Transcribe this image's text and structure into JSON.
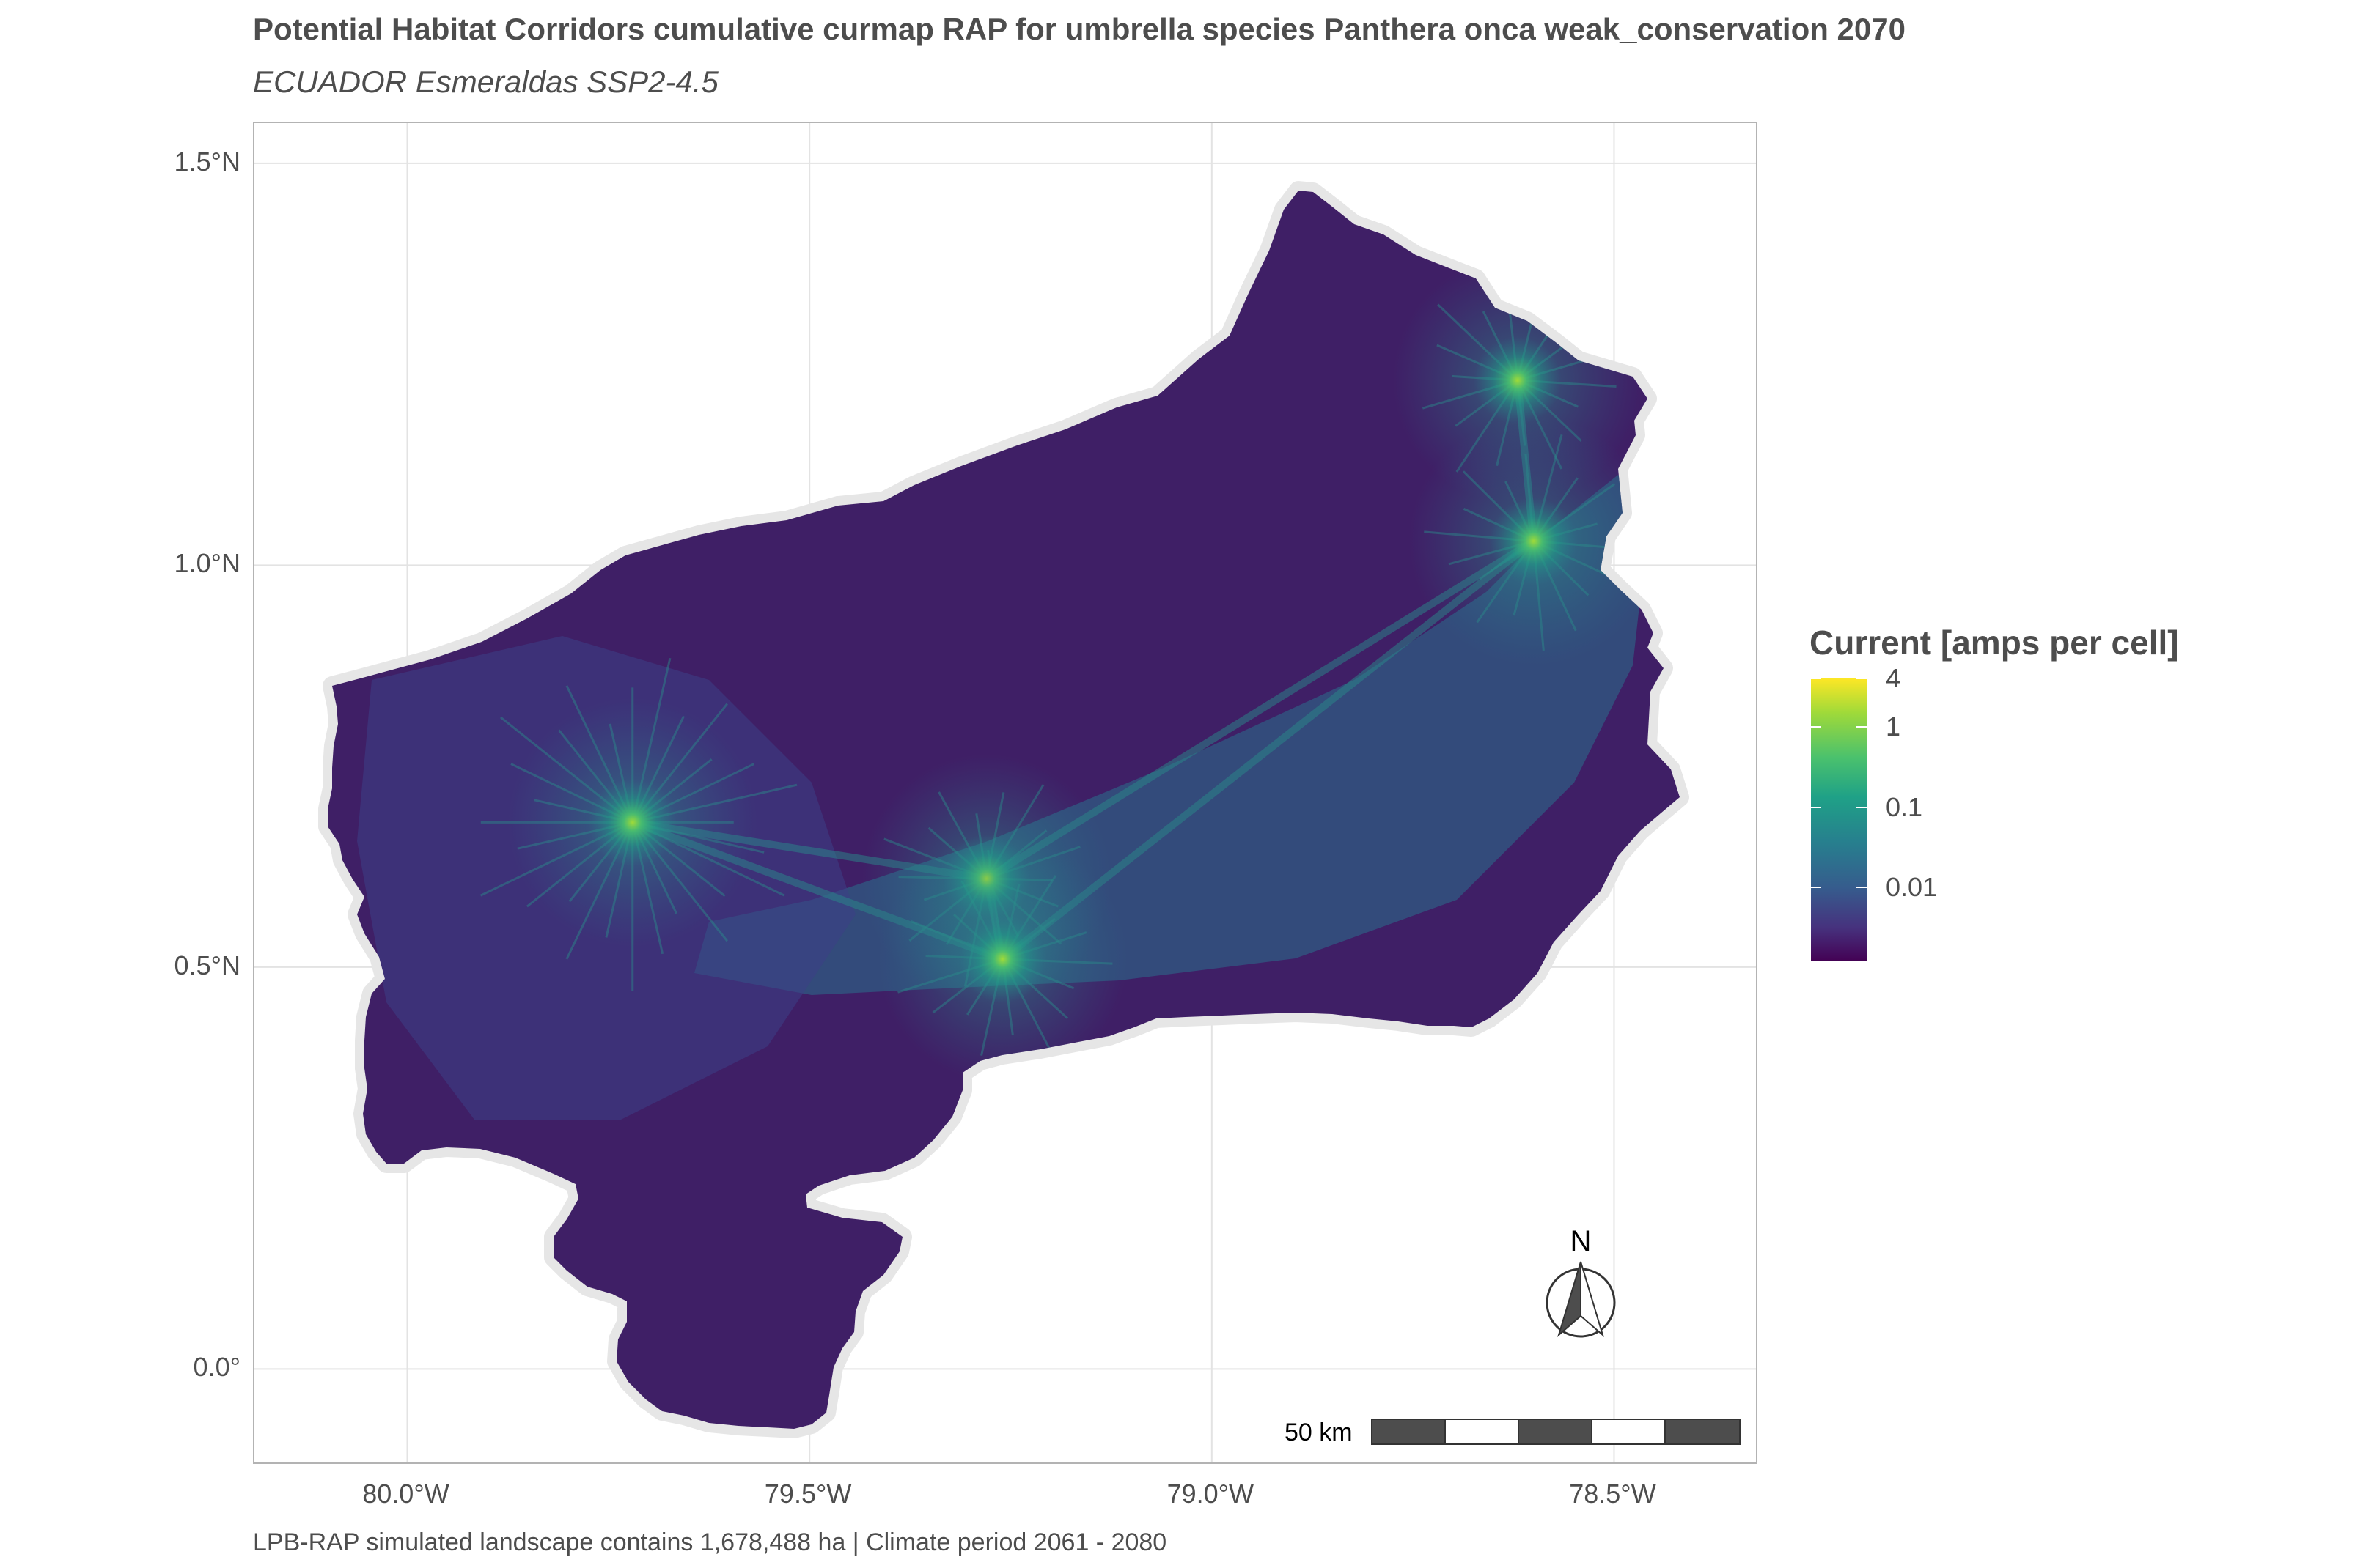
{
  "header": {
    "title": "Potential Habitat Corridors cumulative curmap RAP for umbrella species Panthera onca weak_conservation 2070",
    "subtitle": "ECUADOR Esmeraldas SSP2-4.5"
  },
  "caption": "LPB-RAP simulated landscape contains 1,678,488 ha | Climate period 2061 - 2080",
  "axes": {
    "y_ticks": [
      {
        "label": "1.5°N",
        "value": 1.5
      },
      {
        "label": "1.0°N",
        "value": 1.0
      },
      {
        "label": "0.5°N",
        "value": 0.5
      },
      {
        "label": "0.0°",
        "value": 0.0
      }
    ],
    "x_ticks": [
      {
        "label": "80.0°W",
        "value": -80.0
      },
      {
        "label": "79.5°W",
        "value": -79.5
      },
      {
        "label": "79.0°W",
        "value": -79.0
      },
      {
        "label": "78.5°W",
        "value": -78.5
      }
    ],
    "lon_range": [
      -80.19,
      -78.32
    ],
    "lat_range": [
      -0.12,
      1.55
    ]
  },
  "legend": {
    "title": "Current [amps per cell]",
    "labels": [
      {
        "label": "4",
        "value": 4
      },
      {
        "label": "1",
        "value": 1
      },
      {
        "label": "0.1",
        "value": 0.1
      },
      {
        "label": "0.01",
        "value": 0.01
      }
    ],
    "color_scale": "viridis",
    "colors": [
      "#440154",
      "#46327e",
      "#365c8d",
      "#277f8e",
      "#1fa187",
      "#4ac16d",
      "#a0da39",
      "#fde725"
    ]
  },
  "map": {
    "fill_base": "#3f1f66",
    "corridor_color": "#2a8a8a",
    "hotspot_color": "#4ac16d",
    "hotspots": [
      {
        "lon": -79.72,
        "lat": 0.68
      },
      {
        "lon": -79.28,
        "lat": 0.61
      },
      {
        "lon": -79.26,
        "lat": 0.51
      },
      {
        "lon": -78.62,
        "lat": 1.23
      },
      {
        "lon": -78.6,
        "lat": 1.03
      }
    ]
  },
  "scale_bar": {
    "label": "50 km",
    "segments": [
      "#4d4d4d",
      "#ffffff",
      "#4d4d4d",
      "#ffffff",
      "#4d4d4d"
    ]
  },
  "north_arrow": {
    "label": "N"
  }
}
